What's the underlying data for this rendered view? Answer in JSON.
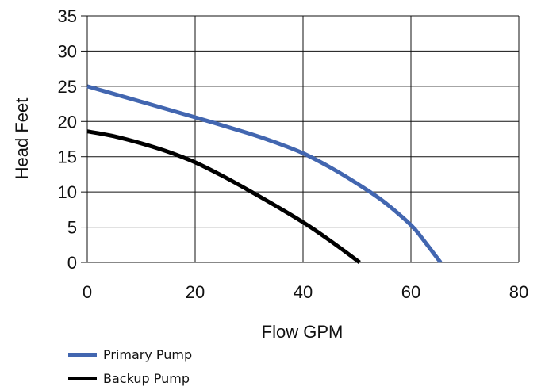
{
  "chart_data": {
    "type": "line",
    "xlabel": "Flow GPM",
    "ylabel": "Head Feet",
    "xlim": [
      0,
      80
    ],
    "ylim": [
      0,
      35
    ],
    "xticks": [
      "0",
      "20",
      "40",
      "60",
      "80"
    ],
    "yticks": [
      "0",
      "5",
      "10",
      "15",
      "20",
      "25",
      "30",
      "35"
    ],
    "grid": true,
    "legend_position": "bottom-left",
    "series": [
      {
        "name": "Primary Pump",
        "color": "#4266b0",
        "x": [
          0,
          10,
          20,
          30,
          35,
          40,
          45,
          50,
          55,
          60,
          62,
          64,
          65.5
        ],
        "y": [
          25,
          22.8,
          20.6,
          18.3,
          17,
          15.5,
          13.5,
          11.2,
          8.6,
          5.3,
          3.5,
          1.5,
          0
        ]
      },
      {
        "name": "Backup Pump",
        "color": "#000000",
        "x": [
          0,
          5,
          10,
          15,
          20,
          25,
          30,
          35,
          40,
          45,
          50.5
        ],
        "y": [
          18.6,
          17.9,
          16.9,
          15.7,
          14.2,
          12.3,
          10.2,
          8,
          5.7,
          3.1,
          0
        ]
      }
    ]
  }
}
